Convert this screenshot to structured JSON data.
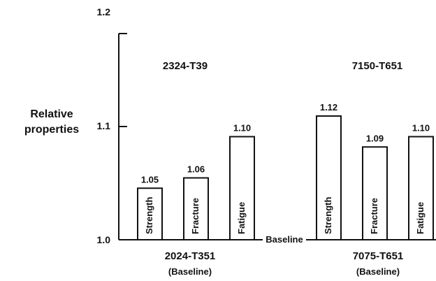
{
  "chart_data": {
    "type": "bar",
    "ylabel_lines": [
      "Relative",
      "properties"
    ],
    "ylim": [
      1.0,
      1.2
    ],
    "y_ticks": [
      "1.0",
      "1.1",
      "1.2"
    ],
    "grid": false,
    "baseline_label": "Baseline",
    "groups": [
      {
        "title": "2324-T39",
        "baseline_name": "2024-T351",
        "baseline_note": "(Baseline)",
        "categories": [
          "Strength",
          "Fracture",
          "Fatigue"
        ],
        "values": [
          1.05,
          1.06,
          1.1
        ],
        "value_labels": [
          "1.05",
          "1.06",
          "1.10"
        ]
      },
      {
        "title": "7150-T651",
        "baseline_name": "7075-T651",
        "baseline_note": "(Baseline)",
        "categories": [
          "Strength",
          "Fracture",
          "Fatigue"
        ],
        "values": [
          1.12,
          1.09,
          1.1
        ],
        "value_labels": [
          "1.12",
          "1.09",
          "1.10"
        ]
      }
    ]
  }
}
